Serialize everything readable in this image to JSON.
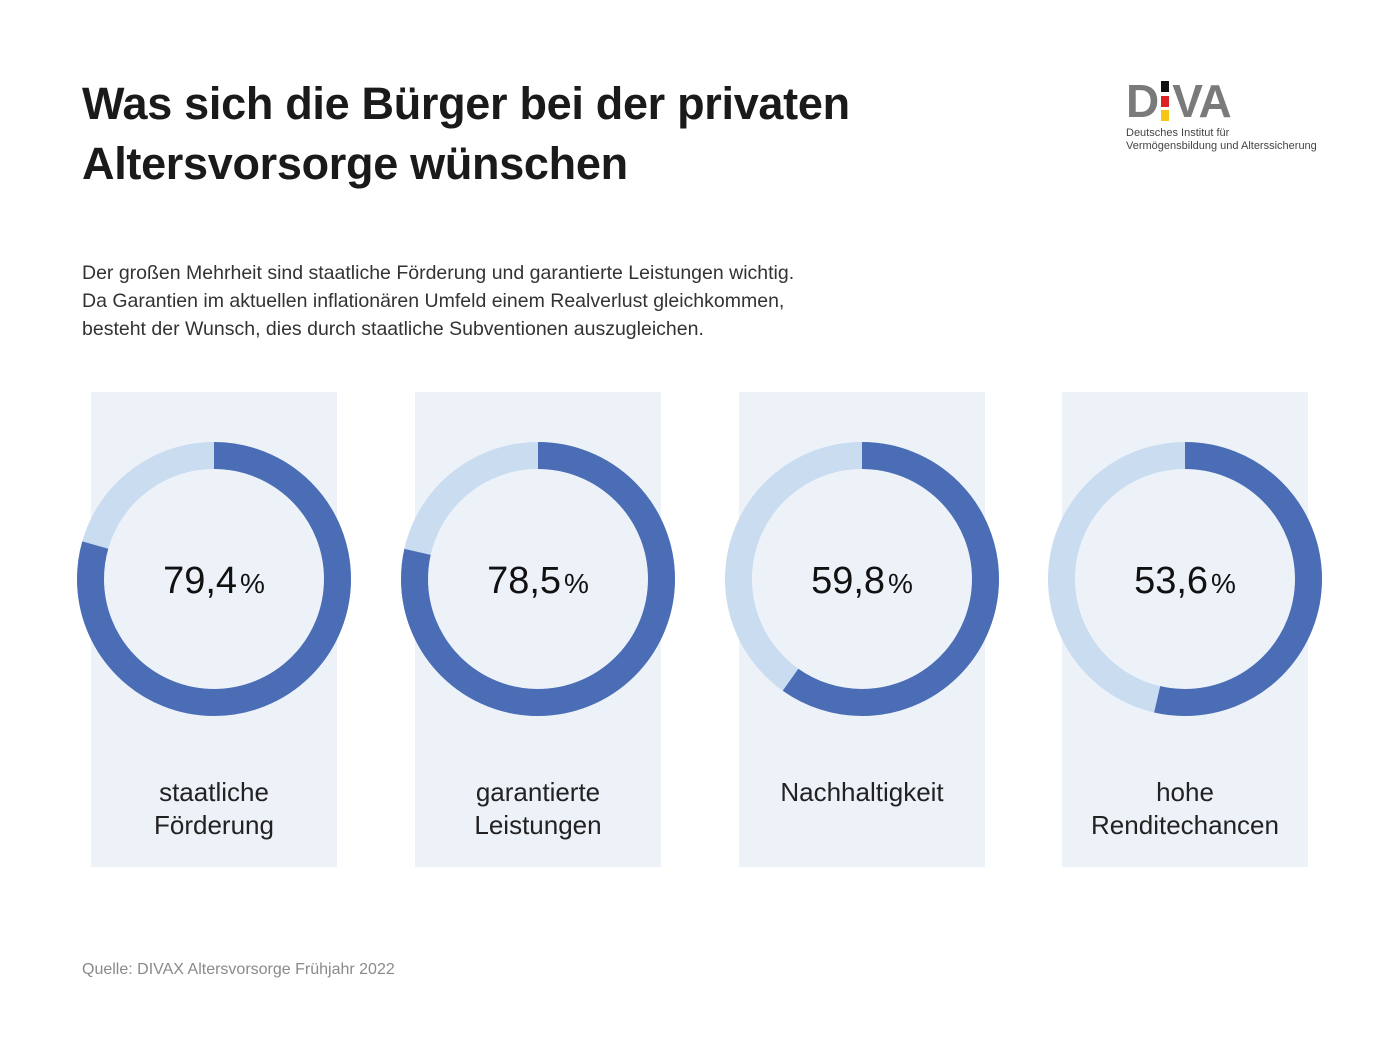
{
  "title_lines": [
    "Was sich die Bürger bei der privaten",
    "Altersvorsorge wünschen"
  ],
  "logo": {
    "text_left": "D",
    "text_right": "VA",
    "subtitle_lines": [
      "Deutsches Institut für",
      "Vermögensbildung und Alterssicherung"
    ],
    "flag_colors": [
      "#111111",
      "#dd1f26",
      "#f5c518"
    ]
  },
  "intro_lines": [
    "Der großen Mehrheit sind staatliche Förderung und garantierte Leistungen wichtig.",
    "Da Garantien im aktuellen inflationären Umfeld einem Realverlust gleichkommen,",
    "besteht der Wunsch, dies durch staatliche Subventionen auszugleichen."
  ],
  "colors": {
    "primary": "#4a6db5",
    "remainder": "#c9dcf0",
    "panel": "#edf2f9"
  },
  "chart_data": {
    "type": "pie",
    "subtype": "donut",
    "title": "Was sich die Bürger bei der privaten Altersvorsorge wünschen",
    "unit": "%",
    "categories": [
      "staatliche Förderung",
      "garantierte Leistungen",
      "Nachhaltigkeit",
      "hohe Renditechancen"
    ],
    "values": [
      79.4,
      78.5,
      59.8,
      53.6
    ],
    "value_labels": [
      "79,4",
      "78,5",
      "59,8",
      "53,6"
    ],
    "label_lines": [
      [
        "staatliche",
        "Förderung"
      ],
      [
        "garantierte",
        "Leistungen"
      ],
      [
        "Nachhaltigkeit"
      ],
      [
        "hohe",
        "Renditechancen"
      ]
    ],
    "max": 100
  },
  "source": "Quelle: DIVAX Altersvorsorge Frühjahr 2022"
}
